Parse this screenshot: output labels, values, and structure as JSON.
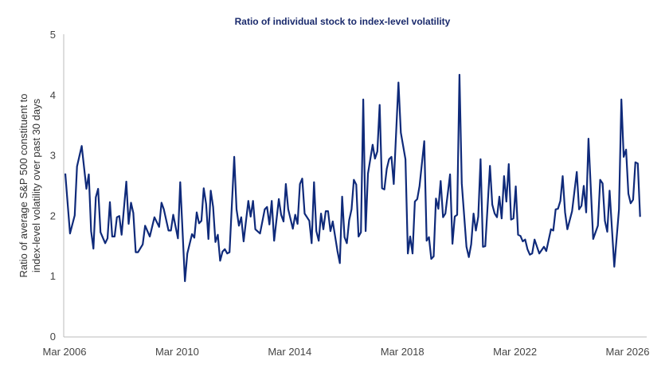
{
  "chart_data": {
    "type": "line",
    "title": "Ratio of individual stock to index-level volatility",
    "xlabel": "",
    "ylabel": [
      "Ratio of average S&P 500 constituent to",
      "index-level volatility over past 30 days"
    ],
    "ylim": [
      0,
      5
    ],
    "yticks": [
      "0",
      "1",
      "2",
      "3",
      "4",
      "5"
    ],
    "xticks": [
      "Mar 2006",
      "Mar 2010",
      "Mar 2014",
      "Mar 2018",
      "Mar 2022",
      "Mar 2026"
    ],
    "grid": false,
    "line_color": "#0f2a7a",
    "series": [
      {
        "x": [
          "2006-03",
          "2006-05",
          "2006-07",
          "2006-08",
          "2006-10",
          "2006-12",
          "2007-01",
          "2007-02",
          "2007-03",
          "2007-04",
          "2007-05",
          "2007-06",
          "2007-08",
          "2007-09",
          "2007-10",
          "2007-11",
          "2007-12",
          "2008-01",
          "2008-02",
          "2008-03",
          "2008-05",
          "2008-06",
          "2008-07",
          "2008-08",
          "2008-09",
          "2008-10",
          "2008-12",
          "2009-01",
          "2009-03",
          "2009-05",
          "2009-07",
          "2009-08",
          "2009-09",
          "2009-11",
          "2009-12",
          "2010-01",
          "2010-03",
          "2010-04",
          "2010-06",
          "2010-07",
          "2010-09",
          "2010-10",
          "2010-11",
          "2010-12",
          "2011-01",
          "2011-02",
          "2011-03",
          "2011-04",
          "2011-05",
          "2011-06",
          "2011-07",
          "2011-08",
          "2011-09",
          "2011-10",
          "2011-11",
          "2011-12",
          "2012-01",
          "2012-03",
          "2012-04",
          "2012-05",
          "2012-06",
          "2012-07",
          "2012-09",
          "2012-10",
          "2012-11",
          "2012-12",
          "2013-02",
          "2013-04",
          "2013-05",
          "2013-06",
          "2013-07",
          "2013-08",
          "2013-10",
          "2013-11",
          "2013-12",
          "2014-01",
          "2014-02",
          "2014-04",
          "2014-05",
          "2014-06",
          "2014-07",
          "2014-08",
          "2014-09",
          "2014-11",
          "2014-12",
          "2015-01",
          "2015-02",
          "2015-03",
          "2015-04",
          "2015-05",
          "2015-06",
          "2015-07",
          "2015-08",
          "2015-09",
          "2015-11",
          "2015-12",
          "2016-01",
          "2016-02",
          "2016-03",
          "2016-04",
          "2016-05",
          "2016-06",
          "2016-07",
          "2016-08",
          "2016-09",
          "2016-10",
          "2016-11",
          "2016-12",
          "2017-02",
          "2017-03",
          "2017-04",
          "2017-05",
          "2017-06",
          "2017-07",
          "2017-08",
          "2017-09",
          "2017-10",
          "2017-11",
          "2018-01",
          "2018-02",
          "2018-04",
          "2018-05",
          "2018-06",
          "2018-07",
          "2018-08",
          "2018-09",
          "2018-10",
          "2018-12",
          "2019-01",
          "2019-02",
          "2019-03",
          "2019-04",
          "2019-05",
          "2019-06",
          "2019-07",
          "2019-08",
          "2019-09",
          "2019-11",
          "2019-12",
          "2020-01",
          "2020-02",
          "2020-03",
          "2020-04",
          "2020-06",
          "2020-07",
          "2020-08",
          "2020-09",
          "2020-10",
          "2020-11",
          "2020-12",
          "2021-01",
          "2021-02",
          "2021-04",
          "2021-05",
          "2021-06",
          "2021-07",
          "2021-08",
          "2021-09",
          "2021-10",
          "2021-11",
          "2021-12",
          "2022-01",
          "2022-02",
          "2022-03",
          "2022-04",
          "2022-05",
          "2022-06",
          "2022-07",
          "2022-08",
          "2022-09",
          "2022-10",
          "2022-11",
          "2023-01",
          "2023-03",
          "2023-04",
          "2023-06",
          "2023-07",
          "2023-08",
          "2023-09",
          "2023-10",
          "2023-11",
          "2023-12",
          "2024-01",
          "2024-03",
          "2024-05",
          "2024-06",
          "2024-07",
          "2024-08",
          "2024-09",
          "2024-10",
          "2024-12",
          "2025-02",
          "2025-03",
          "2025-04",
          "2025-05",
          "2025-06",
          "2025-07",
          "2025-09",
          "2025-11",
          "2025-12",
          "2026-01",
          "2026-02",
          "2026-03",
          "2026-04",
          "2026-05",
          "2026-06",
          "2026-07",
          "2026-08"
        ],
        "y": [
          2.69,
          1.7,
          2.0,
          2.81,
          3.15,
          2.44,
          2.68,
          1.74,
          1.45,
          2.3,
          2.44,
          1.72,
          1.54,
          1.62,
          2.22,
          1.65,
          1.65,
          1.97,
          1.99,
          1.68,
          2.56,
          1.86,
          2.21,
          2.04,
          1.39,
          1.39,
          1.52,
          1.83,
          1.65,
          1.97,
          1.81,
          2.21,
          2.1,
          1.75,
          1.75,
          2.01,
          1.62,
          2.55,
          0.91,
          1.37,
          1.69,
          1.63,
          2.05,
          1.87,
          1.91,
          2.45,
          2.19,
          1.61,
          2.41,
          2.14,
          1.56,
          1.68,
          1.25,
          1.4,
          1.44,
          1.37,
          1.39,
          2.97,
          2.1,
          1.83,
          1.97,
          1.57,
          2.24,
          1.98,
          2.24,
          1.77,
          1.7,
          2.1,
          2.14,
          1.85,
          2.24,
          1.58,
          2.27,
          2.01,
          1.9,
          2.52,
          2.1,
          1.78,
          2.01,
          1.86,
          2.52,
          2.61,
          2.03,
          1.91,
          1.54,
          2.55,
          1.74,
          1.58,
          2.03,
          1.77,
          2.07,
          2.07,
          1.74,
          1.9,
          1.41,
          1.21,
          2.31,
          1.64,
          1.54,
          1.92,
          2.1,
          2.59,
          2.51,
          1.65,
          1.72,
          3.92,
          1.74,
          2.69,
          3.17,
          2.94,
          3.06,
          3.83,
          2.45,
          2.43,
          2.77,
          2.93,
          2.97,
          2.52,
          4.2,
          3.37,
          2.93,
          1.37,
          1.65,
          1.37,
          2.23,
          2.27,
          2.49,
          3.23,
          1.58,
          1.64,
          1.28,
          1.32,
          2.28,
          2.11,
          2.57,
          1.97,
          2.03,
          2.68,
          1.53,
          1.98,
          2.01,
          4.33,
          2.53,
          1.48,
          1.31,
          1.52,
          2.03,
          1.75,
          1.98,
          2.93,
          1.48,
          1.49,
          2.82,
          2.18,
          2.03,
          1.97,
          2.31,
          1.95,
          2.65,
          2.23,
          2.85,
          1.93,
          1.95,
          2.48,
          1.68,
          1.66,
          1.57,
          1.6,
          1.44,
          1.35,
          1.37,
          1.6,
          1.37,
          1.48,
          1.41,
          1.77,
          1.75,
          2.1,
          2.11,
          2.24,
          2.65,
          2.05,
          1.77,
          2.07,
          2.72,
          2.1,
          2.16,
          2.49,
          2.05,
          3.27,
          1.61,
          1.83,
          2.59,
          2.53,
          1.91,
          1.73,
          2.41,
          1.15,
          2.1,
          3.92,
          2.97,
          3.09,
          2.36,
          2.2,
          2.26,
          2.88,
          2.86,
          1.98
        ]
      }
    ]
  }
}
